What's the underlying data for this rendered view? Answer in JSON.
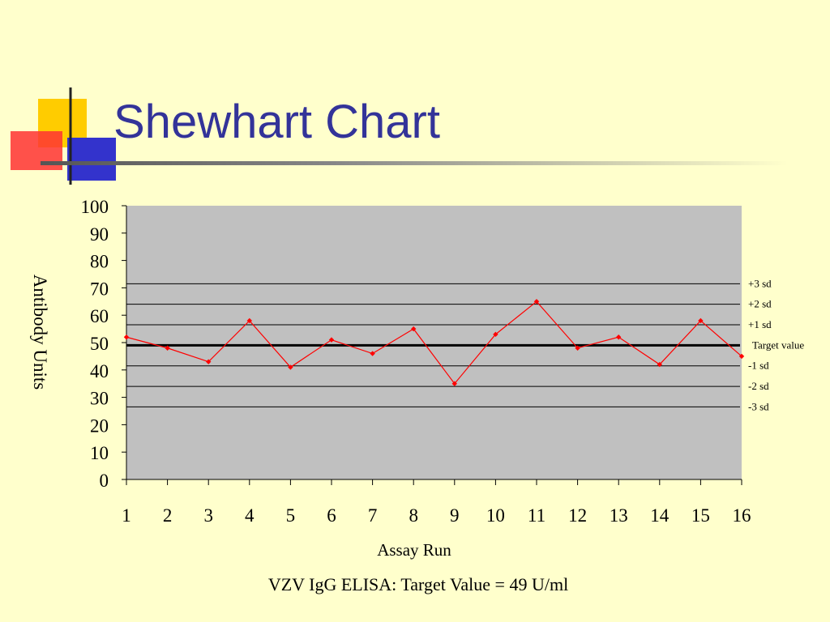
{
  "slide": {
    "title": "Shewhart Chart",
    "caption": "VZV IgG ELISA: Target Value = 49 U/ml"
  },
  "colors": {
    "background": "#FFFFCC",
    "title": "#333399",
    "plot_area": "#C0C0C0",
    "series": "#FF0000",
    "deco_yellow": "#FFCC00",
    "deco_red": "#FF3333",
    "deco_blue": "#3333CC"
  },
  "chart_data": {
    "type": "line",
    "xlabel": "Assay Run",
    "ylabel": "Antibody Units",
    "ylim": [
      0,
      100
    ],
    "ytick_step": 10,
    "yticks": [
      "0",
      "10",
      "20",
      "30",
      "40",
      "50",
      "60",
      "70",
      "80",
      "90",
      "100"
    ],
    "x": [
      1,
      2,
      3,
      4,
      5,
      6,
      7,
      8,
      9,
      10,
      11,
      12,
      13,
      14,
      15,
      16
    ],
    "xticks": [
      "1",
      "2",
      "3",
      "4",
      "5",
      "6",
      "7",
      "8",
      "9",
      "10",
      "11",
      "12",
      "13",
      "14",
      "15",
      "16"
    ],
    "series": [
      {
        "values": [
          52,
          48,
          43,
          58,
          41,
          51,
          46,
          55,
          35,
          53,
          65,
          48,
          52,
          42,
          58,
          45
        ]
      }
    ],
    "reference_lines": [
      {
        "label": "+3 sd",
        "value": 71.5
      },
      {
        "label": "+2 sd",
        "value": 64
      },
      {
        "label": "+1 sd",
        "value": 56.5
      },
      {
        "label": "Target value",
        "value": 49,
        "emphasis": true
      },
      {
        "label": "-1 sd",
        "value": 41.5
      },
      {
        "label": "-2 sd",
        "value": 34
      },
      {
        "label": "-3 sd",
        "value": 26.5
      }
    ],
    "grid": false,
    "legend": "right"
  }
}
